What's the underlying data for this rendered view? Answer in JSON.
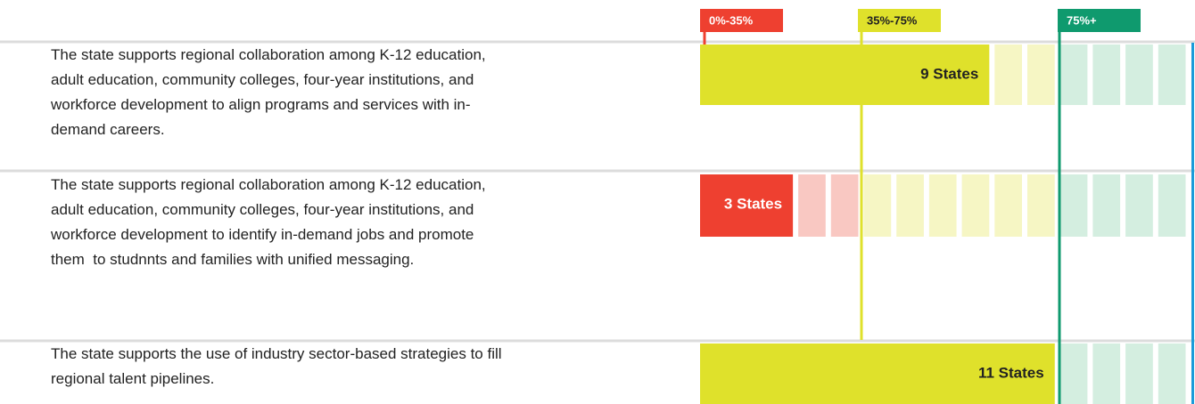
{
  "chart_data": {
    "type": "bar",
    "orientation": "horizontal",
    "categories": [
      [
        "The state supports regional collaboration among K-12 education,",
        "adult education, community colleges, four-year institutions, and",
        "workforce development to align programs and services with in-",
        "demand careers."
      ],
      [
        "The state supports regional collaboration among K-12 education,",
        "adult education, community colleges, four-year institutions, and",
        "workforce development to identify in-demand jobs and promote",
        "them  to studnnts and families with unified messaging."
      ],
      [
        "The state supports the use of industry sector-based strategies to fill",
        "regional talent pipelines."
      ]
    ],
    "values": [
      9,
      3,
      11
    ],
    "value_labels": [
      "9 States",
      "3 States",
      "11 States"
    ],
    "colors": [
      "#dfe12b",
      "#ee4030",
      "#dfe12b"
    ],
    "label_colors": [
      "#222222",
      "#ffffff",
      "#222222"
    ],
    "xlim": [
      0,
      15
    ],
    "thresholds": [
      {
        "label": "0%-35%",
        "color": "#ee4030",
        "text_color": "#ffffff"
      },
      {
        "label": "35%-75%",
        "color": "#dfe12b",
        "text_color": "#222222"
      },
      {
        "label": "75%+",
        "color": "#0f9a6e",
        "text_color": "#ffffff"
      }
    ]
  }
}
